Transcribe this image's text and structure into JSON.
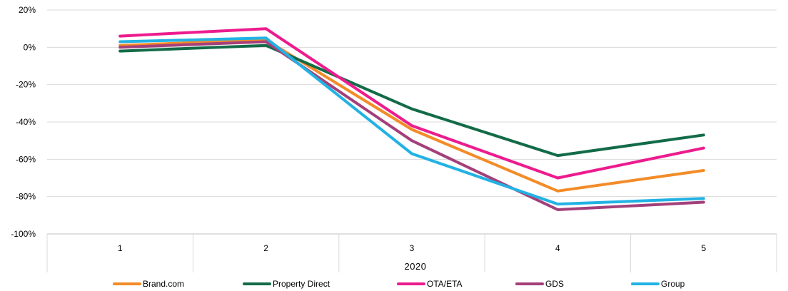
{
  "chart_data": {
    "type": "line",
    "title": "",
    "xlabel": "2020",
    "ylabel": "",
    "categories": [
      "1",
      "2",
      "3",
      "4",
      "5"
    ],
    "ylim": [
      -100,
      20
    ],
    "yticks": [
      20,
      0,
      -20,
      -40,
      -60,
      -80,
      -100
    ],
    "ytick_labels": [
      "20%",
      "0%",
      "-20%",
      "-40%",
      "-60%",
      "-80%",
      "-100%"
    ],
    "grid": true,
    "legend_position": "bottom",
    "series": [
      {
        "name": "Brand.com",
        "color": "#F28C28",
        "values": [
          1,
          4,
          -44,
          -77,
          -66
        ]
      },
      {
        "name": "Property Direct",
        "color": "#136B48",
        "values": [
          -2,
          1,
          -33,
          -58,
          -47
        ]
      },
      {
        "name": "OTA/ETA",
        "color": "#EC1C8E",
        "values": [
          6,
          10,
          -42,
          -70,
          -54
        ]
      },
      {
        "name": "GDS",
        "color": "#A3407A",
        "values": [
          0,
          3,
          -50,
          -87,
          -83
        ]
      },
      {
        "name": "Group",
        "color": "#22B2E3",
        "values": [
          3,
          5,
          -57,
          -84,
          -81
        ]
      }
    ]
  }
}
